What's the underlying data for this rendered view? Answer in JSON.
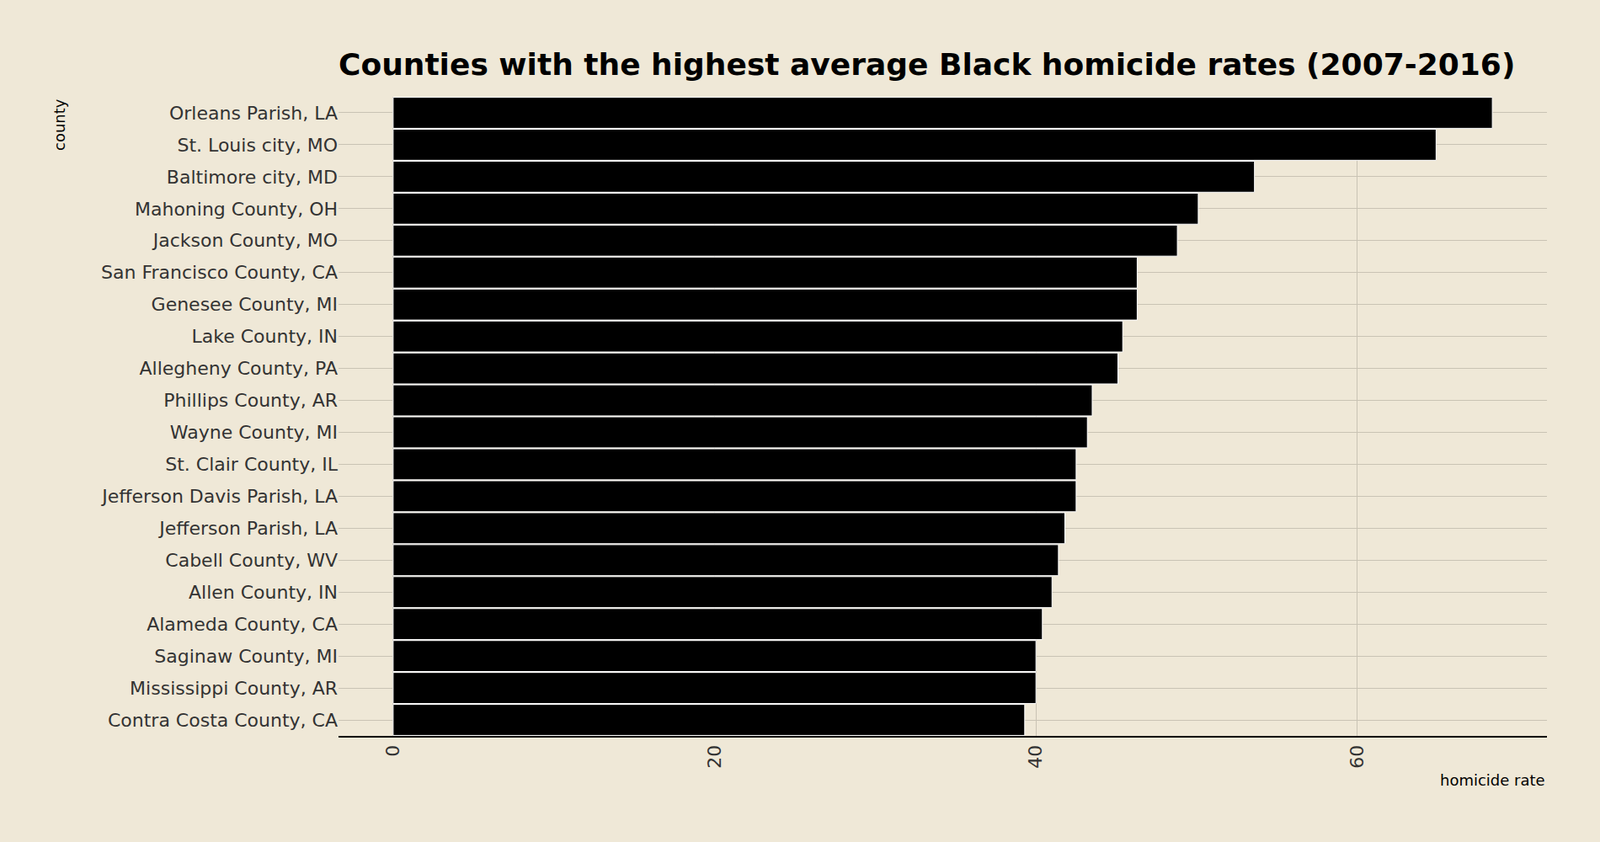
{
  "chart_data": {
    "type": "bar",
    "title": "Counties with the highest average Black homicide rates (2007-2016)",
    "orientation": "horizontal",
    "x_label": "homicide rate",
    "y_label": "county",
    "categories": [
      "Orleans Parish, LA",
      "St. Louis city, MO",
      "Baltimore city, MD",
      "Mahoning County, OH",
      "Jackson County, MO",
      "San Francisco County, CA",
      "Genesee County, MI",
      "Lake County, IN",
      "Allegheny County, PA",
      "Phillips County, AR",
      "Wayne County, MI",
      "St. Clair County, IL",
      "Jefferson Davis Parish, LA",
      "Jefferson Parish, LA",
      "Cabell County, WV",
      "Allen County, IN",
      "Alameda County, CA",
      "Saginaw County, MI",
      "Mississippi County, AR",
      "Contra Costa County, CA"
    ],
    "values": [
      68.4,
      64.9,
      53.6,
      50.1,
      48.8,
      46.3,
      46.3,
      45.4,
      45.1,
      43.5,
      43.2,
      42.5,
      42.5,
      41.8,
      41.4,
      41.0,
      40.4,
      40.0,
      40.0,
      39.3
    ],
    "color": "#000000",
    "xlim": [
      -3.4,
      71.8
    ],
    "xticks": [
      0,
      20,
      40,
      60
    ],
    "grid": true
  }
}
